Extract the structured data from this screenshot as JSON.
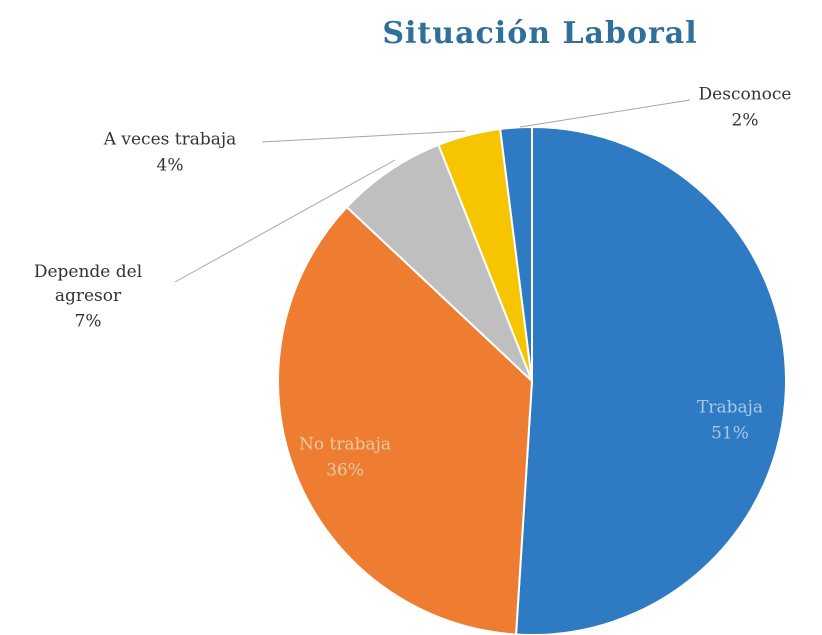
{
  "chart_data": {
    "type": "pie",
    "title": "Situación Laboral",
    "categories": [
      "Trabaja",
      "No trabaja",
      "Depende del agresor",
      "A veces trabaja",
      "Desconoce"
    ],
    "values": [
      51,
      36,
      7,
      4,
      2
    ],
    "value_labels": [
      "51%",
      "36%",
      "7%",
      "4%",
      "2%"
    ],
    "colors": [
      "#2e7bc4",
      "#ee7d31",
      "#bfbfbf",
      "#f6c500",
      "#2e7bc4"
    ]
  }
}
